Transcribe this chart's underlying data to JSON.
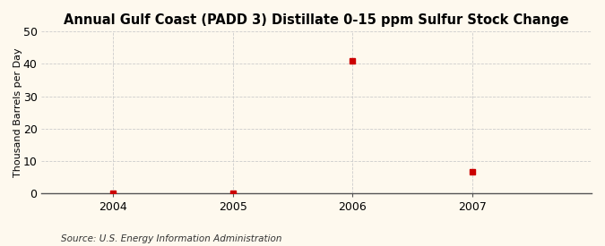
{
  "title": "Annual Gulf Coast (PADD 3) Distillate 0-15 ppm Sulfur Stock Change",
  "ylabel": "Thousand Barrels per Day",
  "source": "Source: U.S. Energy Information Administration",
  "x": [
    2004,
    2005,
    2006,
    2007
  ],
  "y": [
    0.05,
    0.05,
    41.0,
    6.5
  ],
  "xlim": [
    2003.4,
    2008.0
  ],
  "ylim": [
    0,
    50
  ],
  "yticks": [
    0,
    10,
    20,
    30,
    40,
    50
  ],
  "xticks": [
    2004,
    2005,
    2006,
    2007
  ],
  "marker_color": "#cc0000",
  "marker_size": 4,
  "background_color": "#fef9ee",
  "grid_color": "#cccccc",
  "title_fontsize": 10.5,
  "label_fontsize": 8,
  "tick_fontsize": 9,
  "source_fontsize": 7.5
}
